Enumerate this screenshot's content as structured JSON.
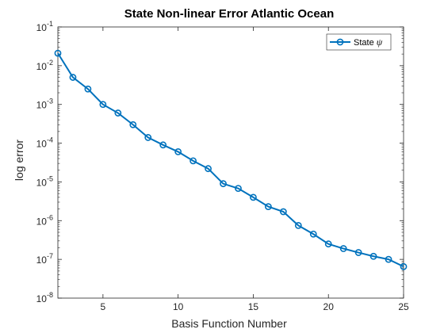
{
  "chart_data": {
    "type": "line",
    "title": "State Non-linear Error Atlantic Ocean",
    "xlabel": "Basis Function Number",
    "ylabel": "log error",
    "xlim": [
      2,
      25
    ],
    "ylim": [
      1e-08,
      0.1
    ],
    "yscale": "log",
    "x_ticks": [
      5,
      10,
      15,
      20,
      25
    ],
    "y_tick_exponents": [
      -8,
      -7,
      -6,
      -5,
      -4,
      -3,
      -2,
      -1
    ],
    "y_tick_base": "10",
    "grid": false,
    "legend_position": "top-right",
    "series": [
      {
        "name": "State ",
        "name_symbol": "ψ",
        "color": "#0072BD",
        "marker": "circle",
        "x": [
          2,
          3,
          4,
          5,
          6,
          7,
          8,
          9,
          10,
          11,
          12,
          13,
          14,
          15,
          16,
          17,
          18,
          19,
          20,
          21,
          22,
          23,
          24,
          25
        ],
        "values": [
          0.021,
          0.005,
          0.0025,
          0.001,
          0.0006,
          0.0003,
          0.00014,
          9e-05,
          6e-05,
          3.5e-05,
          2.2e-05,
          9e-06,
          6.8e-06,
          4e-06,
          2.3e-06,
          1.7e-06,
          7.5e-07,
          4.5e-07,
          2.5e-07,
          1.9e-07,
          1.5e-07,
          1.2e-07,
          1e-07,
          6.5e-08
        ]
      }
    ]
  }
}
